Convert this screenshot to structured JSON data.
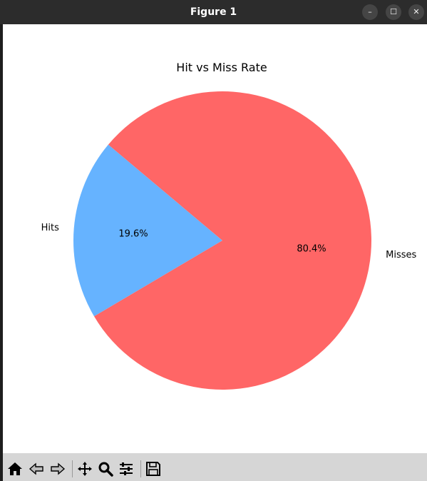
{
  "window": {
    "title": "Figure 1",
    "buttons": [
      {
        "name": "minimize",
        "glyph": "–"
      },
      {
        "name": "maximize",
        "glyph": "☐"
      },
      {
        "name": "close",
        "glyph": "✕"
      }
    ]
  },
  "chart_data": {
    "type": "pie",
    "title": "Hit vs Miss Rate",
    "labels": [
      "Hits",
      "Misses"
    ],
    "values": [
      19.6,
      80.4
    ],
    "percent_labels": [
      "19.6%",
      "80.4%"
    ],
    "colors": [
      "#66b3ff",
      "#ff6666"
    ],
    "start_angle_deg": 140,
    "direction": "counterclockwise"
  },
  "toolbar": {
    "tools": [
      "home-icon",
      "back-icon",
      "forward-icon",
      "pan-icon",
      "zoom-icon",
      "configure-subplots-icon",
      "save-icon"
    ]
  }
}
